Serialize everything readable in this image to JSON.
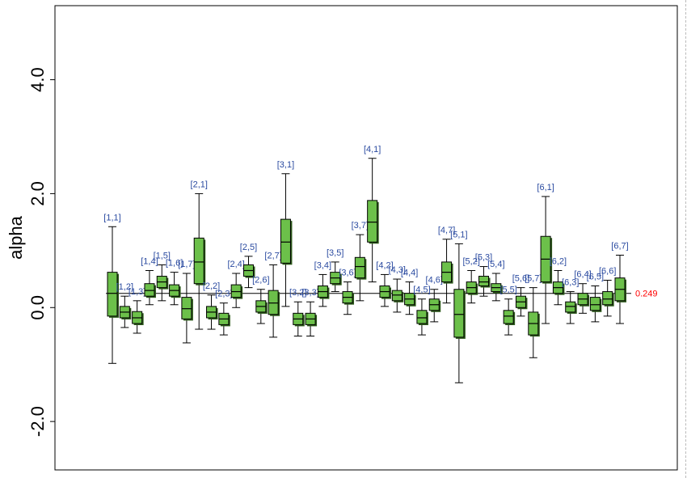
{
  "chart_data": {
    "type": "box",
    "title": "",
    "xlabel": "",
    "ylabel": "alpha",
    "ylim": [
      -2.85,
      5.3
    ],
    "yticks": [
      -2.0,
      0.0,
      2.0,
      4.0
    ],
    "ytick_labels": [
      "-2.0",
      "0.0",
      "2.0",
      "4.0"
    ],
    "reference_line": {
      "value": 0.249,
      "label": "0.249",
      "color": "#ff0000"
    },
    "colors": {
      "box_fill": "#6cc04a",
      "box_stroke": "#000000",
      "label": "#2a4aa0",
      "axis": "#000000"
    },
    "boxes": [
      {
        "label": "[1,1]",
        "whisker_low": -0.98,
        "q1": -0.15,
        "median": 0.25,
        "q3": 0.62,
        "whisker_high": 1.42
      },
      {
        "label": "[1,2]",
        "whisker_low": -0.35,
        "q1": -0.18,
        "median": -0.08,
        "q3": 0.02,
        "whisker_high": 0.2
      },
      {
        "label": "[1,3]",
        "whisker_low": -0.45,
        "q1": -0.28,
        "median": -0.18,
        "q3": -0.07,
        "whisker_high": 0.12
      },
      {
        "label": "[1,4]",
        "whisker_low": 0.05,
        "q1": 0.2,
        "median": 0.3,
        "q3": 0.42,
        "whisker_high": 0.65
      },
      {
        "label": "[1,5]",
        "whisker_low": 0.12,
        "q1": 0.35,
        "median": 0.45,
        "q3": 0.55,
        "whisker_high": 0.75
      },
      {
        "label": "[1,6]",
        "whisker_low": 0.05,
        "q1": 0.2,
        "median": 0.3,
        "q3": 0.4,
        "whisker_high": 0.62
      },
      {
        "label": "[1,7]",
        "whisker_low": -0.62,
        "q1": -0.2,
        "median": -0.02,
        "q3": 0.18,
        "whisker_high": 0.6
      },
      {
        "label": "[2,1]",
        "whisker_low": -0.38,
        "q1": 0.42,
        "median": 0.8,
        "q3": 1.22,
        "whisker_high": 2.0
      },
      {
        "label": "[2,2]",
        "whisker_low": -0.38,
        "q1": -0.18,
        "median": -0.08,
        "q3": 0.02,
        "whisker_high": 0.22
      },
      {
        "label": "[2,3]",
        "whisker_low": -0.48,
        "q1": -0.3,
        "median": -0.2,
        "q3": -0.1,
        "whisker_high": 0.08
      },
      {
        "label": "[2,4]",
        "whisker_low": 0.0,
        "q1": 0.18,
        "median": 0.28,
        "q3": 0.4,
        "whisker_high": 0.6
      },
      {
        "label": "[2,5]",
        "whisker_low": 0.35,
        "q1": 0.55,
        "median": 0.65,
        "q3": 0.75,
        "whisker_high": 0.9
      },
      {
        "label": "[2,6]",
        "whisker_low": -0.28,
        "q1": -0.08,
        "median": 0.02,
        "q3": 0.12,
        "whisker_high": 0.32
      },
      {
        "label": "[2,7]",
        "whisker_low": -0.52,
        "q1": -0.12,
        "median": 0.08,
        "q3": 0.3,
        "whisker_high": 0.75
      },
      {
        "label": "[3,1]",
        "whisker_low": 0.02,
        "q1": 0.78,
        "median": 1.15,
        "q3": 1.55,
        "whisker_high": 2.35
      },
      {
        "label": "[3,2]",
        "whisker_low": -0.5,
        "q1": -0.3,
        "median": -0.2,
        "q3": -0.1,
        "whisker_high": 0.1
      },
      {
        "label": "[3,3]",
        "whisker_low": -0.5,
        "q1": -0.3,
        "median": -0.2,
        "q3": -0.1,
        "whisker_high": 0.1
      },
      {
        "label": "[3,4]",
        "whisker_low": 0.02,
        "q1": 0.18,
        "median": 0.28,
        "q3": 0.38,
        "whisker_high": 0.58
      },
      {
        "label": "[3,5]",
        "whisker_low": 0.28,
        "q1": 0.42,
        "median": 0.52,
        "q3": 0.62,
        "whisker_high": 0.8
      },
      {
        "label": "[3,6]",
        "whisker_low": -0.12,
        "q1": 0.08,
        "median": 0.18,
        "q3": 0.28,
        "whisker_high": 0.45
      },
      {
        "label": "[3,7]",
        "whisker_low": 0.12,
        "q1": 0.52,
        "median": 0.72,
        "q3": 0.88,
        "whisker_high": 1.28
      },
      {
        "label": "[4,1]",
        "whisker_low": 0.45,
        "q1": 1.15,
        "median": 1.5,
        "q3": 1.88,
        "whisker_high": 2.62
      },
      {
        "label": "[4,2]",
        "whisker_low": 0.02,
        "q1": 0.18,
        "median": 0.28,
        "q3": 0.38,
        "whisker_high": 0.58
      },
      {
        "label": "[4,3]",
        "whisker_low": -0.08,
        "q1": 0.12,
        "median": 0.22,
        "q3": 0.3,
        "whisker_high": 0.5
      },
      {
        "label": "[4,4]",
        "whisker_low": -0.12,
        "q1": 0.05,
        "median": 0.15,
        "q3": 0.25,
        "whisker_high": 0.45
      },
      {
        "label": "[4,5]",
        "whisker_low": -0.48,
        "q1": -0.28,
        "median": -0.18,
        "q3": -0.05,
        "whisker_high": 0.15
      },
      {
        "label": "[4,6]",
        "whisker_low": -0.25,
        "q1": -0.05,
        "median": 0.05,
        "q3": 0.15,
        "whisker_high": 0.32
      },
      {
        "label": "[4,7]",
        "whisker_low": 0.08,
        "q1": 0.45,
        "median": 0.62,
        "q3": 0.8,
        "whisker_high": 1.2
      },
      {
        "label": "[5,1]",
        "whisker_low": -1.32,
        "q1": -0.52,
        "median": -0.12,
        "q3": 0.32,
        "whisker_high": 1.12
      },
      {
        "label": "[5,2]",
        "whisker_low": 0.08,
        "q1": 0.25,
        "median": 0.35,
        "q3": 0.45,
        "whisker_high": 0.65
      },
      {
        "label": "[5,3]",
        "whisker_low": 0.2,
        "q1": 0.38,
        "median": 0.45,
        "q3": 0.55,
        "whisker_high": 0.72
      },
      {
        "label": "[5,4]",
        "whisker_low": 0.12,
        "q1": 0.28,
        "median": 0.35,
        "q3": 0.42,
        "whisker_high": 0.6
      },
      {
        "label": "[5,5]",
        "whisker_low": -0.48,
        "q1": -0.28,
        "median": -0.15,
        "q3": -0.05,
        "whisker_high": 0.15
      },
      {
        "label": "[5,6]",
        "whisker_low": -0.15,
        "q1": 0.0,
        "median": 0.1,
        "q3": 0.2,
        "whisker_high": 0.35
      },
      {
        "label": "[5,7]",
        "whisker_low": -0.88,
        "q1": -0.48,
        "median": -0.28,
        "q3": -0.08,
        "whisker_high": 0.35
      },
      {
        "label": "[6,1]",
        "whisker_low": -0.28,
        "q1": 0.45,
        "median": 0.85,
        "q3": 1.25,
        "whisker_high": 1.95
      },
      {
        "label": "[6,2]",
        "whisker_low": 0.05,
        "q1": 0.25,
        "median": 0.35,
        "q3": 0.45,
        "whisker_high": 0.65
      },
      {
        "label": "[6,3]",
        "whisker_low": -0.28,
        "q1": -0.08,
        "median": 0.02,
        "q3": 0.1,
        "whisker_high": 0.28
      },
      {
        "label": "[6,4]",
        "whisker_low": -0.1,
        "q1": 0.05,
        "median": 0.15,
        "q3": 0.25,
        "whisker_high": 0.42
      },
      {
        "label": "[6,5]",
        "whisker_low": -0.25,
        "q1": -0.05,
        "median": 0.05,
        "q3": 0.18,
        "whisker_high": 0.38
      },
      {
        "label": "[6,6]",
        "whisker_low": -0.15,
        "q1": 0.05,
        "median": 0.15,
        "q3": 0.28,
        "whisker_high": 0.48
      },
      {
        "label": "[6,7]",
        "whisker_low": -0.28,
        "q1": 0.12,
        "median": 0.32,
        "q3": 0.52,
        "whisker_high": 0.92
      }
    ]
  }
}
